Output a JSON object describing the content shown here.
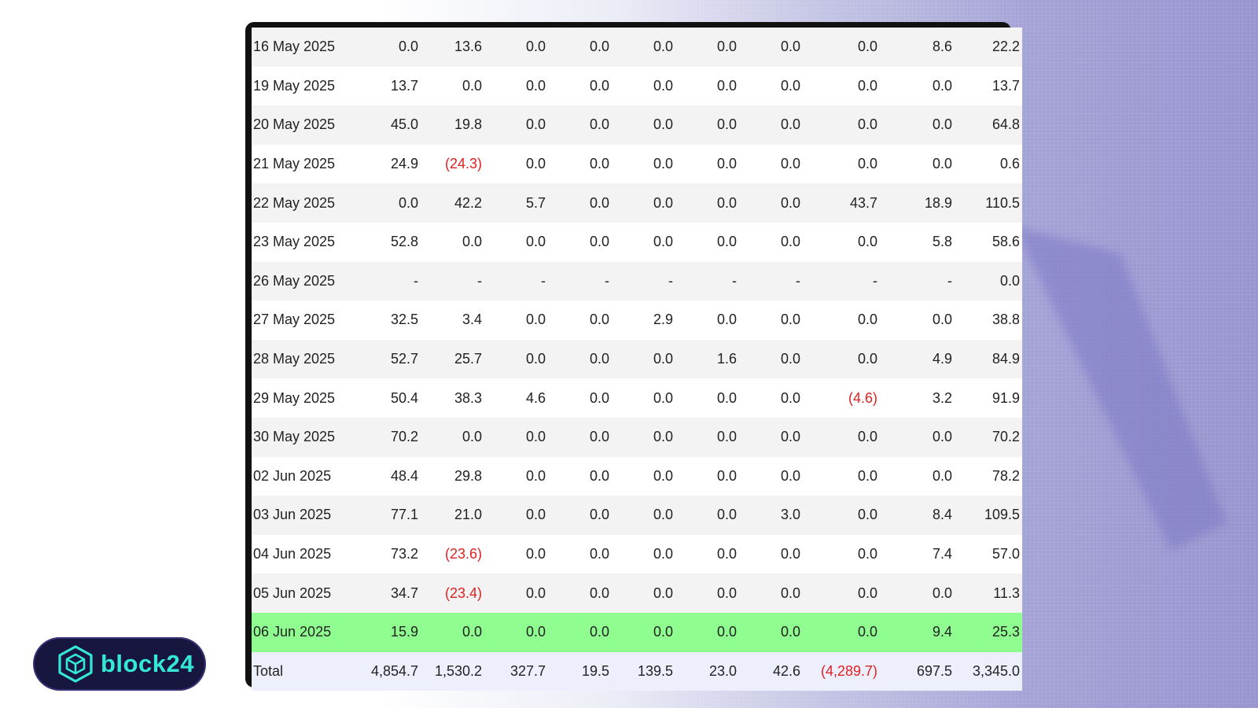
{
  "brand": {
    "name": "block24",
    "logo_icon": "cube-icon"
  },
  "colors": {
    "negative": "#e02020",
    "highlight_row": "#90fd90",
    "total_row": "#edeffc",
    "logo_accent": "#35e7d7"
  },
  "table": {
    "rows": [
      [
        "16 May 2025",
        "0.0",
        "13.6",
        "0.0",
        "0.0",
        "0.0",
        "0.0",
        "0.0",
        "0.0",
        "8.6",
        "22.2"
      ],
      [
        "19 May 2025",
        "13.7",
        "0.0",
        "0.0",
        "0.0",
        "0.0",
        "0.0",
        "0.0",
        "0.0",
        "0.0",
        "13.7"
      ],
      [
        "20 May 2025",
        "45.0",
        "19.8",
        "0.0",
        "0.0",
        "0.0",
        "0.0",
        "0.0",
        "0.0",
        "0.0",
        "64.8"
      ],
      [
        "21 May 2025",
        "24.9",
        "(24.3)",
        "0.0",
        "0.0",
        "0.0",
        "0.0",
        "0.0",
        "0.0",
        "0.0",
        "0.6"
      ],
      [
        "22 May 2025",
        "0.0",
        "42.2",
        "5.7",
        "0.0",
        "0.0",
        "0.0",
        "0.0",
        "43.7",
        "18.9",
        "110.5"
      ],
      [
        "23 May 2025",
        "52.8",
        "0.0",
        "0.0",
        "0.0",
        "0.0",
        "0.0",
        "0.0",
        "0.0",
        "5.8",
        "58.6"
      ],
      [
        "26 May 2025",
        "-",
        "-",
        "-",
        "-",
        "-",
        "-",
        "-",
        "-",
        "-",
        "0.0"
      ],
      [
        "27 May 2025",
        "32.5",
        "3.4",
        "0.0",
        "0.0",
        "2.9",
        "0.0",
        "0.0",
        "0.0",
        "0.0",
        "38.8"
      ],
      [
        "28 May 2025",
        "52.7",
        "25.7",
        "0.0",
        "0.0",
        "0.0",
        "1.6",
        "0.0",
        "0.0",
        "4.9",
        "84.9"
      ],
      [
        "29 May 2025",
        "50.4",
        "38.3",
        "4.6",
        "0.0",
        "0.0",
        "0.0",
        "0.0",
        "(4.6)",
        "3.2",
        "91.9"
      ],
      [
        "30 May 2025",
        "70.2",
        "0.0",
        "0.0",
        "0.0",
        "0.0",
        "0.0",
        "0.0",
        "0.0",
        "0.0",
        "70.2"
      ],
      [
        "02 Jun 2025",
        "48.4",
        "29.8",
        "0.0",
        "0.0",
        "0.0",
        "0.0",
        "0.0",
        "0.0",
        "0.0",
        "78.2"
      ],
      [
        "03 Jun 2025",
        "77.1",
        "21.0",
        "0.0",
        "0.0",
        "0.0",
        "0.0",
        "3.0",
        "0.0",
        "8.4",
        "109.5"
      ],
      [
        "04 Jun 2025",
        "73.2",
        "(23.6)",
        "0.0",
        "0.0",
        "0.0",
        "0.0",
        "0.0",
        "0.0",
        "7.4",
        "57.0"
      ],
      [
        "05 Jun 2025",
        "34.7",
        "(23.4)",
        "0.0",
        "0.0",
        "0.0",
        "0.0",
        "0.0",
        "0.0",
        "0.0",
        "11.3"
      ],
      [
        "06 Jun 2025",
        "15.9",
        "0.0",
        "0.0",
        "0.0",
        "0.0",
        "0.0",
        "0.0",
        "0.0",
        "9.4",
        "25.3"
      ]
    ],
    "highlighted_row": "06 Jun 2025",
    "total": [
      "Total",
      "4,854.7",
      "1,530.2",
      "327.7",
      "19.5",
      "139.5",
      "23.0",
      "42.6",
      "(4,289.7)",
      "697.5",
      "3,345.0"
    ]
  }
}
